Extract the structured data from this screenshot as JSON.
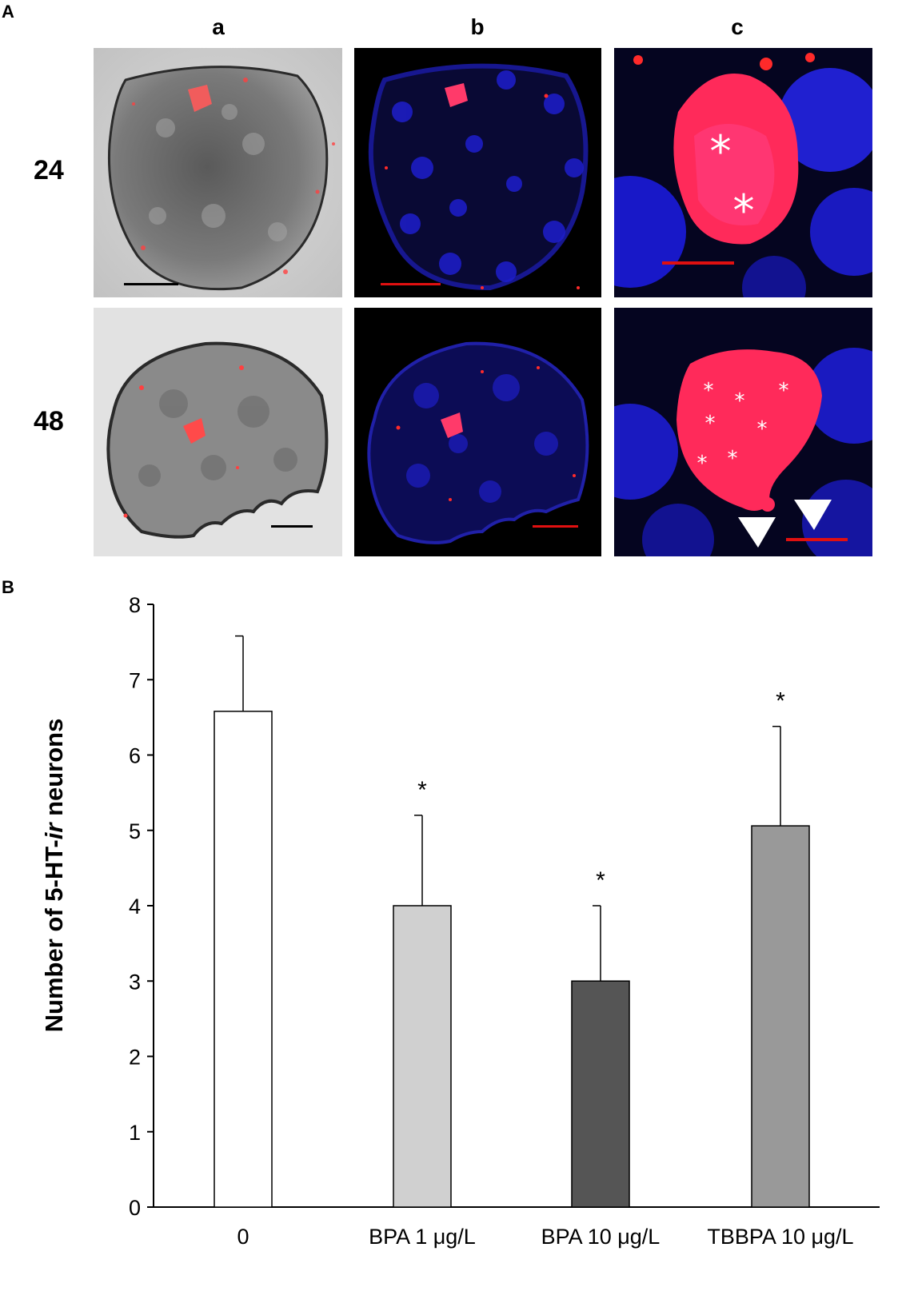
{
  "figure": {
    "panel_A_letter": "A",
    "panel_B_letter": "B",
    "column_labels": [
      "a",
      "b",
      "c"
    ],
    "row_labels": [
      "24",
      "48"
    ]
  },
  "chart_data": {
    "type": "bar",
    "categories": [
      "0",
      "BPA 1 μg/L",
      "BPA 10 μg/L",
      "TBBPA 10 μg/L"
    ],
    "values": [
      6.58,
      4.0,
      3.0,
      5.06
    ],
    "errors": [
      1.0,
      1.2,
      1.0,
      1.32
    ],
    "significance": [
      "",
      "*",
      "*",
      "*"
    ],
    "bar_colors": [
      "#ffffff",
      "#d0d0d0",
      "#555555",
      "#999999"
    ],
    "ylabel_prefix": "Number of 5-HT-",
    "ylabel_italic": "ir",
    "ylabel_suffix": " neurons",
    "xlabel": "",
    "ylim": [
      0,
      8
    ],
    "yticks": [
      0,
      1,
      2,
      3,
      4,
      5,
      6,
      7,
      8
    ],
    "grid": false
  }
}
